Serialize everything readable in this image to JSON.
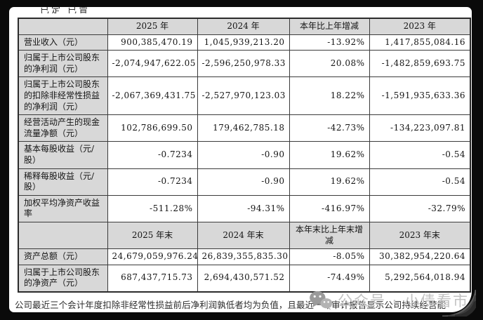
{
  "top_clipped_text": "已定 已冒",
  "table": {
    "sections": [
      {
        "header": [
          "",
          "2025 年",
          "2024 年",
          "本年比上年增减",
          "2023 年"
        ],
        "rows": [
          {
            "label": "营业收入（元）",
            "values": [
              "900,385,470.19",
              "1,045,939,213.20",
              "-13.92%",
              "1,417,855,084.16"
            ]
          },
          {
            "label": "归属于上市公司股东的净利润（元）",
            "values": [
              "-2,074,947,622.05",
              "-2,596,250,978.33",
              "20.08%",
              "-1,482,859,693.75"
            ]
          },
          {
            "label": "归属于上市公司股东的扣除非经常性损益的净利润（元）",
            "values": [
              "-2,067,369,431.75",
              "-2,527,970,123.03",
              "18.22%",
              "-1,591,935,633.36"
            ]
          },
          {
            "label": "经营活动产生的现金流量净额（元）",
            "values": [
              "102,786,699.50",
              "179,462,785.18",
              "-42.73%",
              "-134,223,097.81"
            ]
          },
          {
            "label": "基本每股收益（元/股）",
            "values": [
              "-0.7234",
              "-0.90",
              "19.62%",
              "-0.54"
            ]
          },
          {
            "label": "稀释每股收益（元/股）",
            "values": [
              "-0.7234",
              "-0.90",
              "19.62%",
              "-0.54"
            ]
          },
          {
            "label": "加权平均净资产收益率",
            "values": [
              "-511.28%",
              "-94.31%",
              "-416.97%",
              "-32.79%"
            ]
          }
        ]
      },
      {
        "header": [
          "",
          "2025 年末",
          "2024 年末",
          "本年末比上年末增减",
          "2023 年末"
        ],
        "rows": [
          {
            "label": "资产总额（元）",
            "values": [
              "24,679,059,976.24",
              "26,839,355,835.30",
              "-8.05%",
              "30,382,954,220.64"
            ]
          },
          {
            "label": "归属于上市公司股东的净资产（元）",
            "values": [
              "687,437,715.73",
              "2,694,430,571.52",
              "-74.49%",
              "5,292,564,018.94"
            ]
          }
        ]
      }
    ]
  },
  "footnote": "公司最近三个会计年度扣除非经常性损益前后净利润孰低者均为负值，且最近一年审计报告显示公司持续经营能力存在不确定性",
  "watermark": {
    "icon": "wechat-logo-icon",
    "text": "公众号 · 小债看市"
  },
  "colors": {
    "frame_background": "#0a0a0a",
    "card_background": "#ffffff",
    "header_bg": "#d8d8d8",
    "table_border": "#3b3b3b",
    "text": "#141414",
    "watermark_text": "#c2c2c2",
    "watermark_icon": "#9a9a9a"
  }
}
